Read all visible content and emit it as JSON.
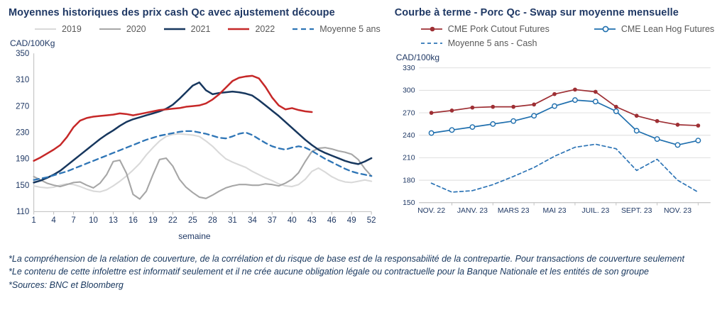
{
  "accent_color": "#1f3864",
  "footnotes": [
    "*La compréhension de la relation de couverture, de la corrélation et du risque de base est de la responsabilité de la contrepartie. Pour transactions de couverture seulement",
    "*Le contenu de cette infolettre est informatif seulement et il ne crée aucune obligation légale ou contractuelle pour la Banque Nationale et les entités de son groupe",
    "*Sources: BNC et Bloomberg"
  ],
  "chart_data": [
    {
      "type": "line",
      "title": "Moyennes historiques des prix cash Qc avec ajustement découpe",
      "ylabel": "CAD/100Kg",
      "xlabel": "semaine",
      "ylim": [
        110,
        350
      ],
      "yticks": [
        110,
        150,
        190,
        230,
        270,
        310,
        350
      ],
      "grid": false,
      "axis_left": true,
      "x_start": 1,
      "x_range": [
        1,
        52
      ],
      "xticks": {
        "positions": [
          1,
          4,
          7,
          10,
          13,
          16,
          19,
          22,
          25,
          28,
          31,
          34,
          37,
          40,
          43,
          46,
          49,
          52
        ],
        "labels": [
          "1",
          "4",
          "7",
          "10",
          "13",
          "16",
          "19",
          "22",
          "25",
          "28",
          "31",
          "34",
          "37",
          "40",
          "43",
          "46",
          "49",
          "52"
        ],
        "marks": [
          1,
          4,
          7,
          10,
          13,
          16,
          19,
          22,
          25,
          28,
          31,
          34,
          37,
          40,
          43,
          46,
          49,
          52
        ]
      },
      "legend_rows": [
        [
          0,
          1,
          2,
          3,
          4
        ]
      ],
      "legend_position": "top",
      "series": [
        {
          "name": "2019",
          "color": "#d9d9d9",
          "width": 2,
          "dash": null,
          "marker": null,
          "values": [
            149,
            147,
            146,
            147,
            150,
            152,
            151,
            148,
            144,
            141,
            140,
            143,
            149,
            156,
            164,
            173,
            183,
            196,
            207,
            217,
            224,
            227,
            228,
            227,
            226,
            224,
            217,
            209,
            199,
            190,
            185,
            181,
            177,
            171,
            166,
            161,
            157,
            152,
            149,
            148,
            151,
            159,
            171,
            176,
            170,
            163,
            158,
            155,
            154,
            156,
            158,
            156
          ]
        },
        {
          "name": "2020",
          "color": "#a6a6a6",
          "width": 2,
          "dash": null,
          "marker": null,
          "values": [
            163,
            158,
            153,
            150,
            148,
            151,
            154,
            155,
            150,
            146,
            153,
            166,
            186,
            188,
            168,
            136,
            129,
            141,
            166,
            189,
            191,
            179,
            159,
            147,
            139,
            132,
            130,
            135,
            141,
            146,
            149,
            151,
            151,
            150,
            150,
            152,
            151,
            149,
            153,
            159,
            169,
            186,
            201,
            206,
            207,
            205,
            202,
            200,
            197,
            189,
            175,
            164
          ]
        },
        {
          "name": "2021",
          "color": "#17375e",
          "width": 2.4,
          "dash": null,
          "marker": null,
          "values": [
            154,
            157,
            161,
            166,
            172,
            180,
            188,
            196,
            204,
            212,
            220,
            227,
            233,
            240,
            246,
            250,
            253,
            256,
            259,
            262,
            266,
            272,
            281,
            291,
            301,
            306,
            294,
            288,
            290,
            291,
            292,
            291,
            289,
            286,
            279,
            271,
            263,
            255,
            246,
            237,
            228,
            219,
            211,
            204,
            199,
            195,
            191,
            187,
            184,
            182,
            186,
            191
          ]
        },
        {
          "name": "2022",
          "color": "#c62828",
          "width": 2.4,
          "dash": null,
          "marker": null,
          "values": [
            187,
            192,
            198,
            204,
            211,
            223,
            238,
            248,
            252,
            254,
            255,
            256,
            257,
            259,
            258,
            256,
            258,
            260,
            262,
            264,
            265,
            266,
            267,
            269,
            270,
            271,
            274,
            280,
            288,
            298,
            308,
            313,
            315,
            316,
            312,
            299,
            283,
            271,
            265,
            267,
            264,
            262,
            261
          ]
        },
        {
          "name": "Moyenne 5 ans",
          "color": "#2e75b6",
          "width": 2.2,
          "dash": "7 5",
          "marker": null,
          "values": [
            158,
            160,
            162,
            165,
            168,
            171,
            175,
            179,
            183,
            187,
            191,
            195,
            199,
            203,
            207,
            211,
            215,
            219,
            222,
            225,
            227,
            229,
            231,
            232,
            232,
            230,
            228,
            225,
            222,
            221,
            224,
            228,
            230,
            226,
            220,
            214,
            209,
            206,
            204,
            207,
            209,
            207,
            202,
            196,
            190,
            185,
            180,
            175,
            171,
            168,
            166,
            164
          ]
        }
      ]
    },
    {
      "type": "line",
      "title": "Courbe à terme - Porc Qc - Swap sur moyenne mensuelle",
      "ylabel": "CAD/100kg",
      "xlabel": "",
      "ylim": [
        150,
        330
      ],
      "yticks": [
        150,
        180,
        210,
        240,
        270,
        300,
        330
      ],
      "grid": true,
      "axis_left": false,
      "x_start": 0,
      "x_range": [
        -0.6,
        13.6
      ],
      "xticks": {
        "positions": [
          0,
          2,
          4,
          6,
          8,
          10,
          12
        ],
        "labels": [
          "NOV. 22",
          "JANV. 23",
          "MARS 23",
          "MAI 23",
          "JUIL. 23",
          "SEPT. 23",
          "NOV. 23"
        ],
        "marks": [
          1,
          3,
          5,
          7,
          9,
          11,
          13
        ]
      },
      "legend_rows": [
        [
          0,
          1
        ],
        [
          2
        ]
      ],
      "legend_position": "top",
      "series": [
        {
          "name": "CME Pork Cutout Futures",
          "color": "#9e2f34",
          "width": 1.8,
          "dash": null,
          "marker": "dot",
          "values": [
            270,
            273,
            277,
            278,
            278,
            281,
            295,
            301,
            298,
            278,
            266,
            259,
            254,
            253
          ]
        },
        {
          "name": "CME Lean Hog Futures",
          "color": "#1f6fae",
          "width": 1.8,
          "dash": null,
          "marker": "circle",
          "values": [
            243,
            247,
            251,
            255,
            259,
            266,
            279,
            287,
            285,
            272,
            246,
            235,
            227,
            233
          ]
        },
        {
          "name": "Moyenne 5 ans - Cash",
          "color": "#2e75b6",
          "width": 1.8,
          "dash": "5 4",
          "marker": null,
          "values": [
            176,
            164,
            166,
            174,
            185,
            197,
            212,
            224,
            228,
            222,
            193,
            208,
            180,
            164
          ]
        }
      ]
    }
  ]
}
